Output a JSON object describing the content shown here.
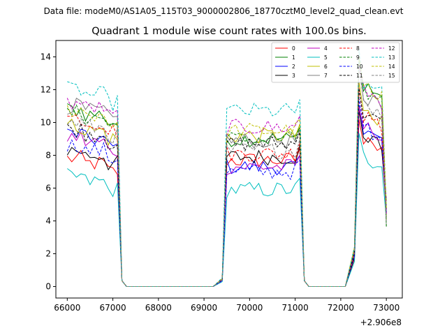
{
  "header": {
    "datafile": "Data file: modeM0/AS1A05_115T03_9000002806_18770cztM0_level2_quad_clean.evt"
  },
  "chart_data": {
    "type": "line",
    "title": "Quadrant 1 module wise count rates with 100.0s bins.",
    "xlabel": "",
    "ylabel": "",
    "x_offset_label": "+2.906e8",
    "xlim": [
      65750,
      73350
    ],
    "ylim": [
      -0.7,
      15.0
    ],
    "x_ticks": [
      66000,
      67000,
      68000,
      69000,
      70000,
      71000,
      72000,
      73000
    ],
    "x_tick_labels": [
      "66000",
      "67000",
      "68000",
      "69000",
      "70000",
      "71000",
      "72000",
      "73000"
    ],
    "y_ticks": [
      0,
      2,
      4,
      6,
      8,
      10,
      12,
      14
    ],
    "y_tick_labels": [
      "0",
      "2",
      "4",
      "6",
      "8",
      "10",
      "12",
      "14"
    ],
    "legend_position": "top-right",
    "legend_columns": 4,
    "segments": [
      {
        "start": 66000,
        "count": 12
      },
      {
        "start": 69400,
        "count": 18
      },
      {
        "start": 72300,
        "count": 8
      }
    ],
    "zero_ranges": [
      [
        67200,
        69200
      ],
      [
        71200,
        72100
      ]
    ],
    "x_sample_step": 100,
    "series": [
      {
        "name": "0",
        "color": "#ff0000",
        "dash": false,
        "base": [
          7.5,
          7.7,
          8.5
        ]
      },
      {
        "name": "1",
        "color": "#008000",
        "dash": false,
        "base": [
          10.5,
          9.0,
          11.8
        ]
      },
      {
        "name": "2",
        "color": "#0000ff",
        "dash": false,
        "base": [
          9.0,
          7.3,
          9.2
        ]
      },
      {
        "name": "3",
        "color": "#000000",
        "dash": false,
        "base": [
          8.0,
          7.9,
          8.8
        ]
      },
      {
        "name": "4",
        "color": "#bf00bf",
        "dash": false,
        "base": [
          8.8,
          7.3,
          9.4
        ]
      },
      {
        "name": "5",
        "color": "#00bfbf",
        "dash": false,
        "base": [
          6.4,
          5.9,
          7.6
        ]
      },
      {
        "name": "6",
        "color": "#bfbf00",
        "dash": false,
        "base": [
          9.5,
          9.2,
          10.4
        ]
      },
      {
        "name": "7",
        "color": "#808080",
        "dash": false,
        "base": [
          10.7,
          8.9,
          11.3
        ]
      },
      {
        "name": "8",
        "color": "#ff0000",
        "dash": true,
        "base": [
          10.0,
          8.1,
          10.1
        ]
      },
      {
        "name": "9",
        "color": "#008000",
        "dash": true,
        "base": [
          10.3,
          9.0,
          11.6
        ]
      },
      {
        "name": "10",
        "color": "#0000ff",
        "dash": true,
        "base": [
          8.3,
          7.0,
          9.4
        ]
      },
      {
        "name": "11",
        "color": "#000000",
        "dash": true,
        "base": [
          9.3,
          8.7,
          10.2
        ]
      },
      {
        "name": "12",
        "color": "#bf00bf",
        "dash": true,
        "base": [
          10.9,
          9.7,
          11.6
        ]
      },
      {
        "name": "13",
        "color": "#00bfbf",
        "dash": true,
        "base": [
          11.7,
          10.7,
          12.1
        ]
      },
      {
        "name": "14",
        "color": "#bfbf00",
        "dash": true,
        "base": [
          10.5,
          9.5,
          11.9
        ]
      },
      {
        "name": "15",
        "color": "#808080",
        "dash": true,
        "base": [
          9.7,
          8.3,
          10.8
        ]
      }
    ]
  }
}
